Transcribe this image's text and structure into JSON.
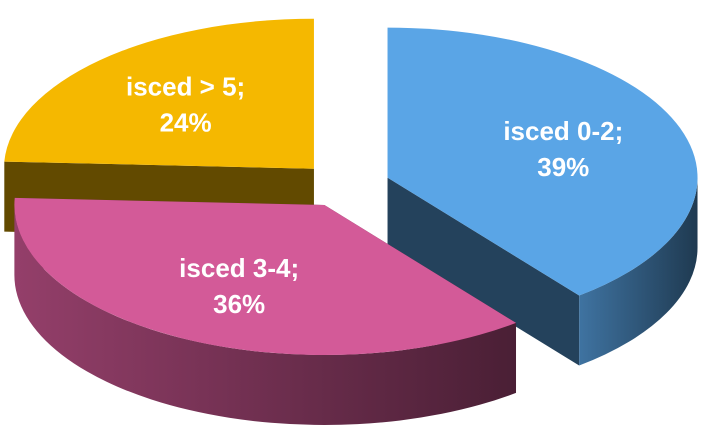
{
  "chart_data": {
    "type": "pie",
    "categories": [
      "isced 0-2;",
      "isced 3-4;",
      "isced > 5;"
    ],
    "values": [
      39,
      36,
      24
    ],
    "value_labels": [
      "39%",
      "36%",
      "24%"
    ],
    "colors": [
      "#5aa5e6",
      "#d35a98",
      "#f5b800"
    ]
  }
}
